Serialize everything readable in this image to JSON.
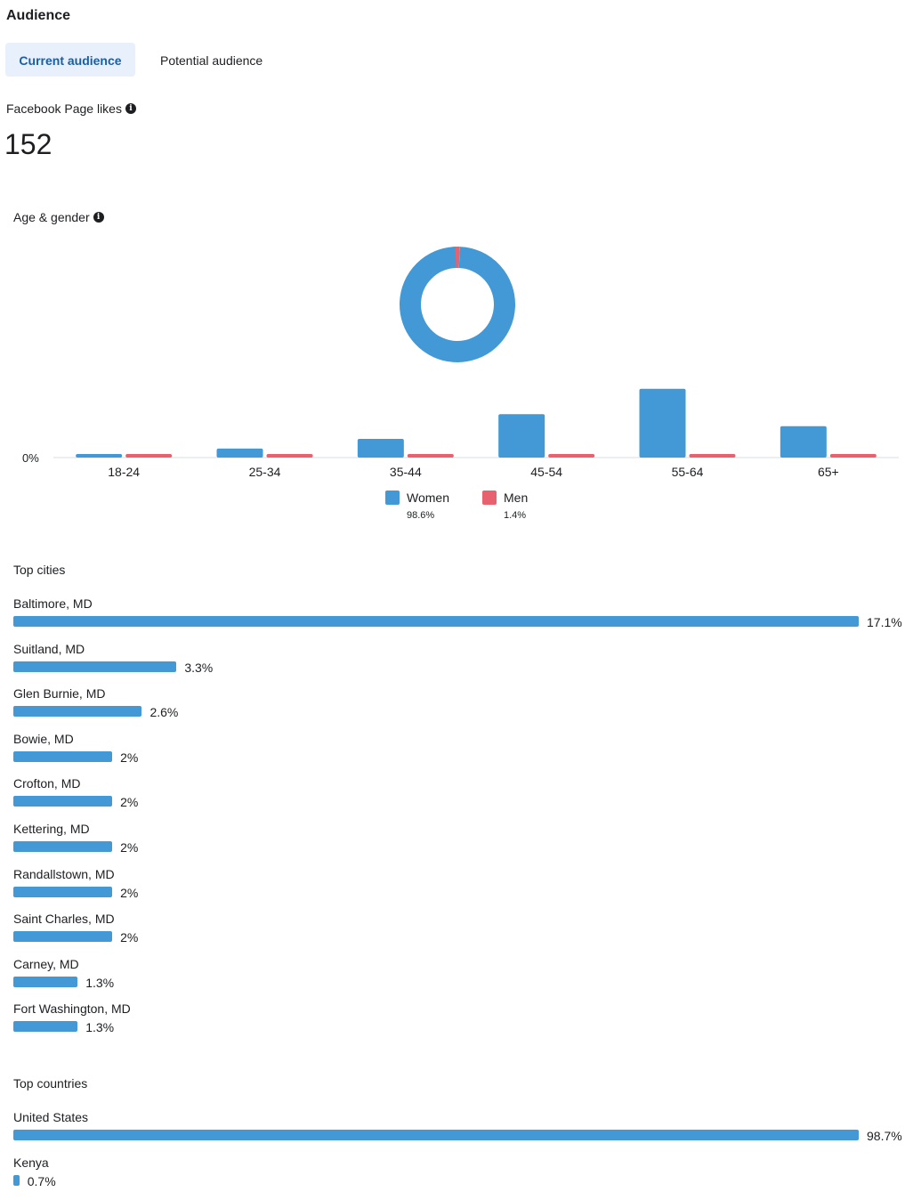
{
  "page": {
    "title": "Audience"
  },
  "tabs": [
    {
      "label": "Current audience",
      "active": true
    },
    {
      "label": "Potential audience",
      "active": false
    }
  ],
  "likes": {
    "label": "Facebook Page likes",
    "value": "152",
    "info_icon": "info-icon"
  },
  "age_gender": {
    "label": "Age & gender",
    "info_icon": "info-icon",
    "donut": {
      "women_share": 98.6,
      "men_share": 1.4
    },
    "legend": [
      {
        "name": "Women",
        "pct": "98.6%",
        "color": "#4299d6"
      },
      {
        "name": "Men",
        "pct": "1.4%",
        "color": "#e8616e"
      }
    ]
  },
  "chart_data": [
    {
      "type": "pie",
      "labels": [
        "Women",
        "Men"
      ],
      "values": [
        98.6,
        1.4
      ],
      "colors": [
        "#4299d6",
        "#e8616e"
      ]
    },
    {
      "type": "bar",
      "categories": [
        "18-24",
        "25-34",
        "35-44",
        "45-54",
        "55-64",
        "65+"
      ],
      "series": [
        {
          "name": "Women",
          "values": [
            0.4,
            1.2,
            2.5,
            5.8,
            9.2,
            4.2
          ],
          "color": "#4299d6"
        },
        {
          "name": "Men",
          "values": [
            0.4,
            0.4,
            0.4,
            0.4,
            0.4,
            0.4
          ],
          "color": "#e8616e"
        }
      ],
      "ytick_label": "0%",
      "ylim": [
        0,
        10
      ],
      "grid": false,
      "legend": "bottom"
    },
    {
      "type": "bar",
      "title": "Top cities",
      "orientation": "horizontal",
      "categories": [
        "Baltimore, MD",
        "Suitland, MD",
        "Glen Burnie, MD",
        "Bowie, MD",
        "Crofton, MD",
        "Kettering, MD",
        "Randallstown, MD",
        "Saint Charles, MD",
        "Carney, MD",
        "Fort Washington, MD"
      ],
      "values": [
        17.1,
        3.3,
        2.6,
        2,
        2,
        2,
        2,
        2,
        1.3,
        1.3
      ]
    },
    {
      "type": "bar",
      "title": "Top countries",
      "orientation": "horizontal",
      "categories": [
        "United States",
        "Kenya"
      ],
      "values": [
        98.7,
        0.7
      ]
    }
  ],
  "top_cities": {
    "label": "Top cities",
    "items": [
      {
        "name": "Baltimore, MD",
        "value": 17.1,
        "pct": "17.1%"
      },
      {
        "name": "Suitland, MD",
        "value": 3.3,
        "pct": "3.3%"
      },
      {
        "name": "Glen Burnie, MD",
        "value": 2.6,
        "pct": "2.6%"
      },
      {
        "name": "Bowie, MD",
        "value": 2,
        "pct": "2%"
      },
      {
        "name": "Crofton, MD",
        "value": 2,
        "pct": "2%"
      },
      {
        "name": "Kettering, MD",
        "value": 2,
        "pct": "2%"
      },
      {
        "name": "Randallstown, MD",
        "value": 2,
        "pct": "2%"
      },
      {
        "name": "Saint Charles, MD",
        "value": 2,
        "pct": "2%"
      },
      {
        "name": "Carney, MD",
        "value": 1.3,
        "pct": "1.3%"
      },
      {
        "name": "Fort Washington, MD",
        "value": 1.3,
        "pct": "1.3%"
      }
    ]
  },
  "top_countries": {
    "label": "Top countries",
    "items": [
      {
        "name": "United States",
        "value": 98.7,
        "pct": "98.7%"
      },
      {
        "name": "Kenya",
        "value": 0.7,
        "pct": "0.7%"
      }
    ]
  }
}
